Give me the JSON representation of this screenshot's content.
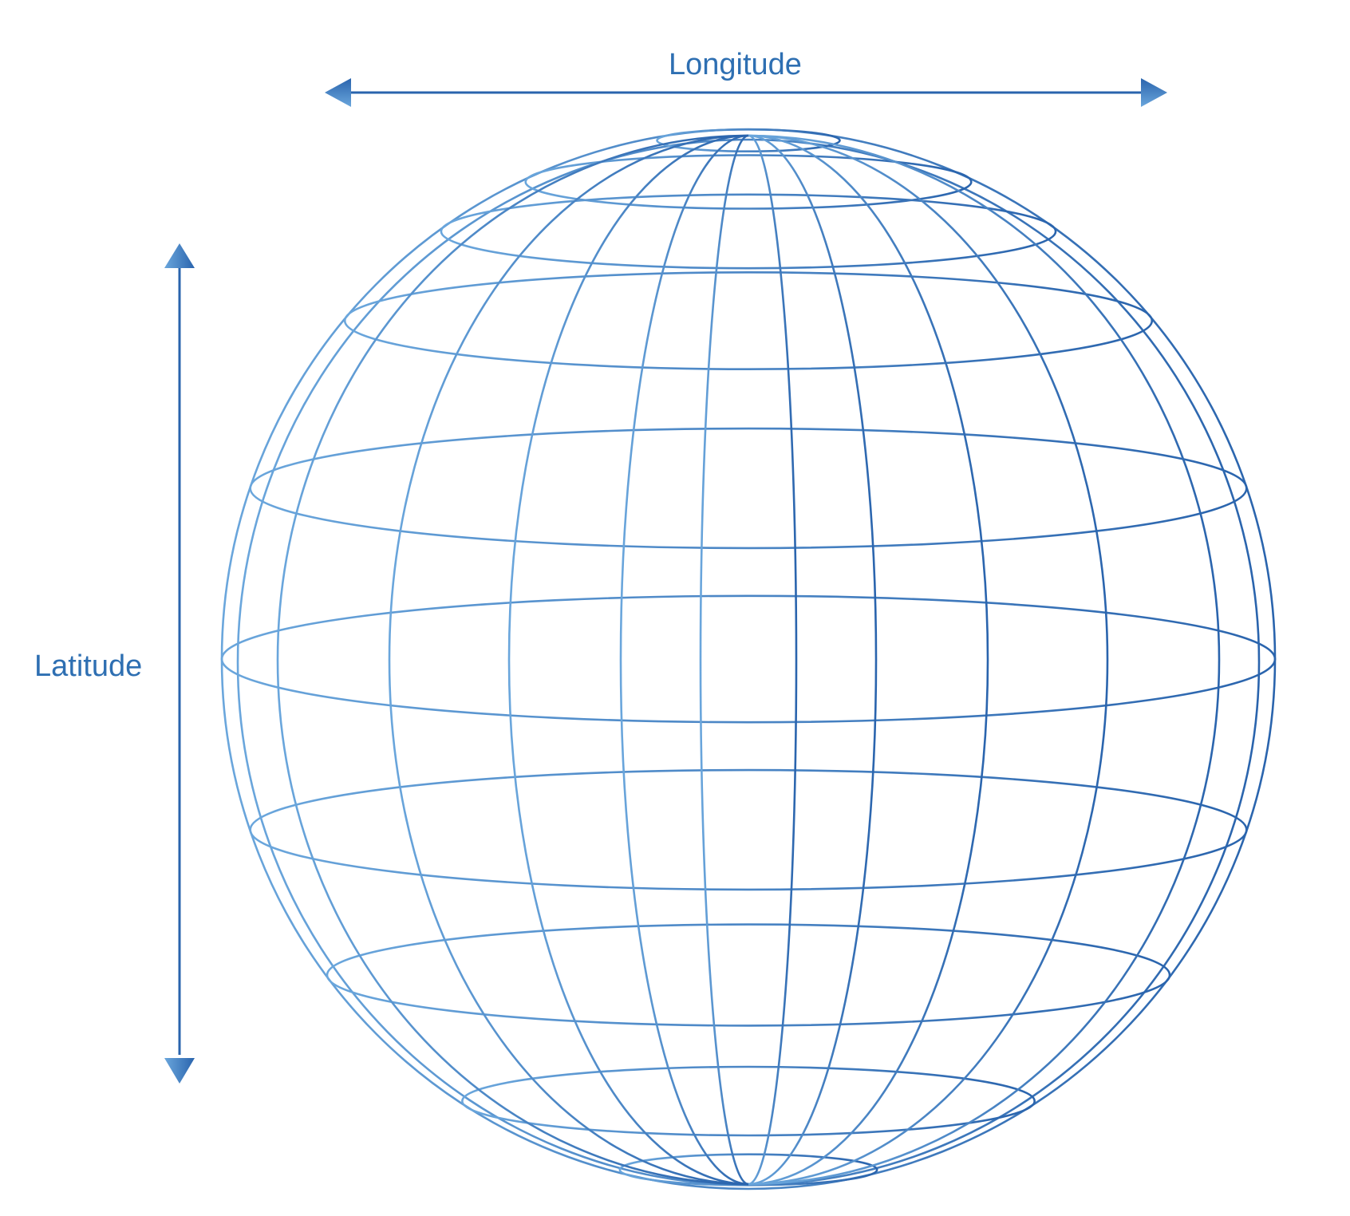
{
  "labels": {
    "longitude": "Longitude",
    "latitude": "Latitude"
  },
  "colors": {
    "line_dark": "#2a64ad",
    "line_light": "#6aa6dc",
    "text": "#2e6fb2",
    "background": "#ffffff"
  },
  "icons": {
    "longitude_arrow": "double-headed-horizontal-arrow",
    "latitude_arrow": "double-headed-vertical-arrow"
  }
}
